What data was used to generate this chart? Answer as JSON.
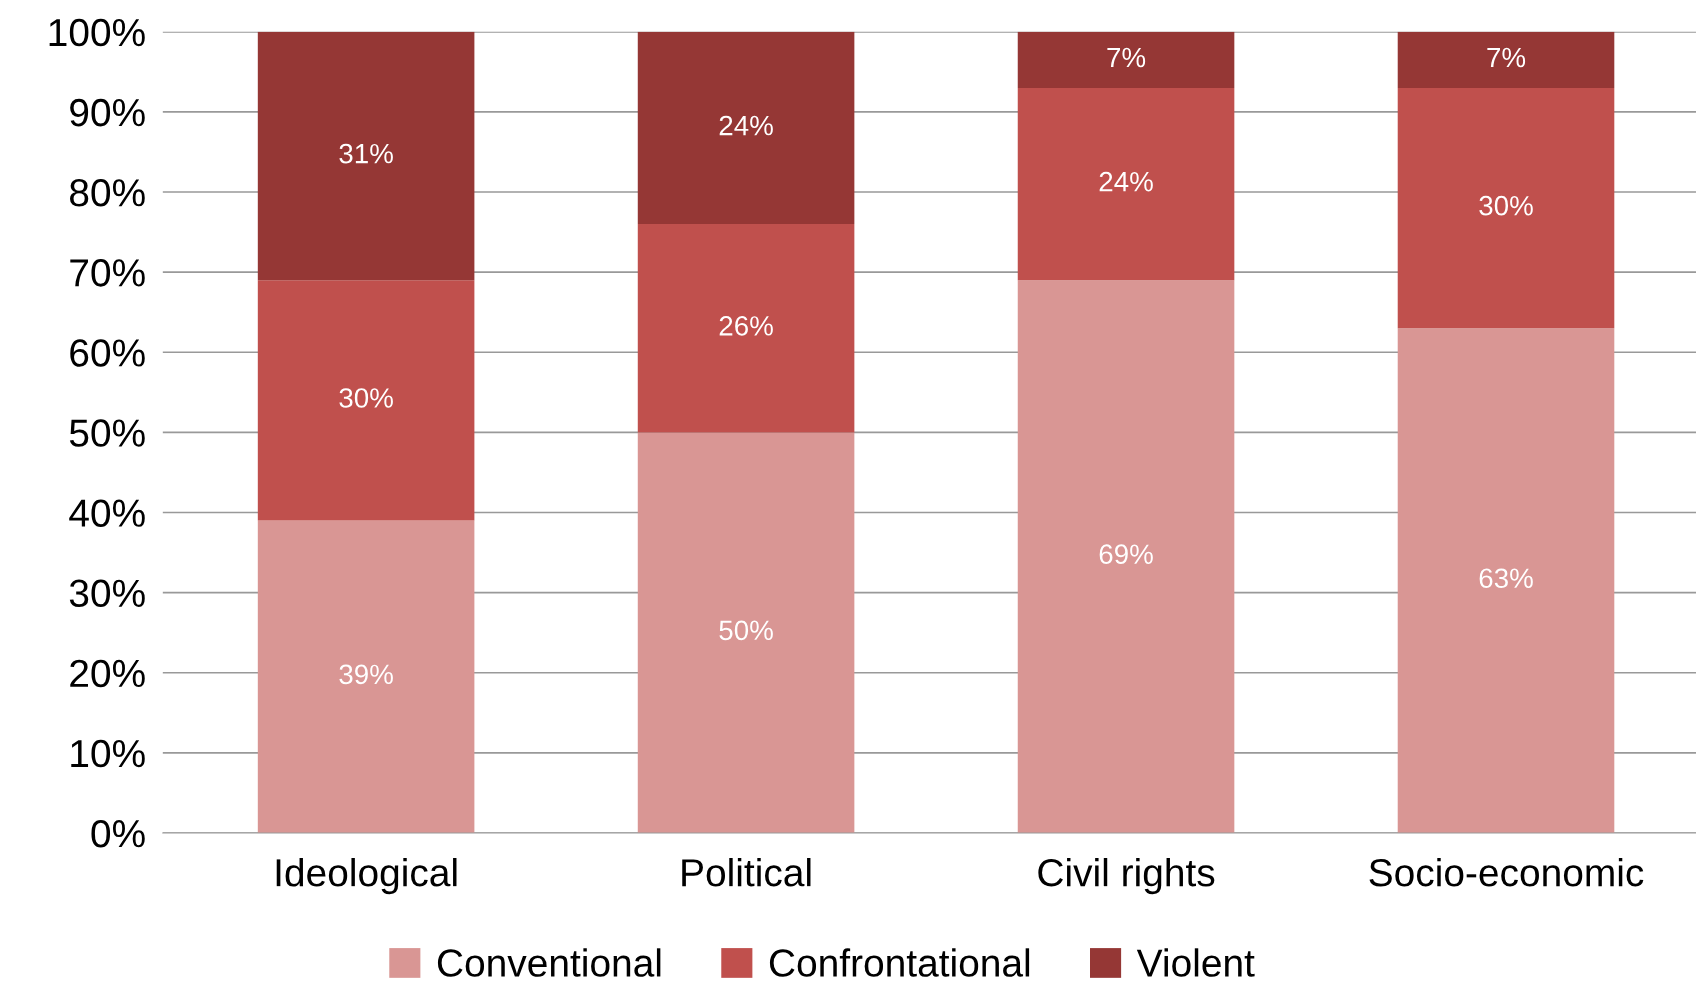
{
  "chart_data": {
    "type": "bar",
    "stacked": true,
    "categories": [
      "Ideological",
      "Political",
      "Civil rights",
      "Socio-economic"
    ],
    "series": [
      {
        "name": "Conventional",
        "color": "#d99694",
        "values": [
          39,
          50,
          69,
          63
        ],
        "value_labels": [
          "39%",
          "50%",
          "69%",
          "63%"
        ]
      },
      {
        "name": "Confrontational",
        "color": "#c0504d",
        "values": [
          30,
          26,
          24,
          30
        ],
        "value_labels": [
          "30%",
          "26%",
          "24%",
          "30%"
        ]
      },
      {
        "name": "Violent",
        "color": "#953735",
        "values": [
          31,
          24,
          7,
          7
        ],
        "value_labels": [
          "31%",
          "24%",
          "7%",
          "7%"
        ]
      }
    ],
    "ylim": [
      0,
      100
    ],
    "yticks": [
      {
        "value": 0,
        "label": "0%"
      },
      {
        "value": 10,
        "label": "10%"
      },
      {
        "value": 20,
        "label": "20%"
      },
      {
        "value": 30,
        "label": "30%"
      },
      {
        "value": 40,
        "label": "40%"
      },
      {
        "value": 50,
        "label": "50%"
      },
      {
        "value": 60,
        "label": "60%"
      },
      {
        "value": 70,
        "label": "70%"
      },
      {
        "value": 80,
        "label": "80%"
      },
      {
        "value": 90,
        "label": "90%"
      },
      {
        "value": 100,
        "label": "100%"
      }
    ],
    "grid": "y",
    "legend": "bottom"
  }
}
